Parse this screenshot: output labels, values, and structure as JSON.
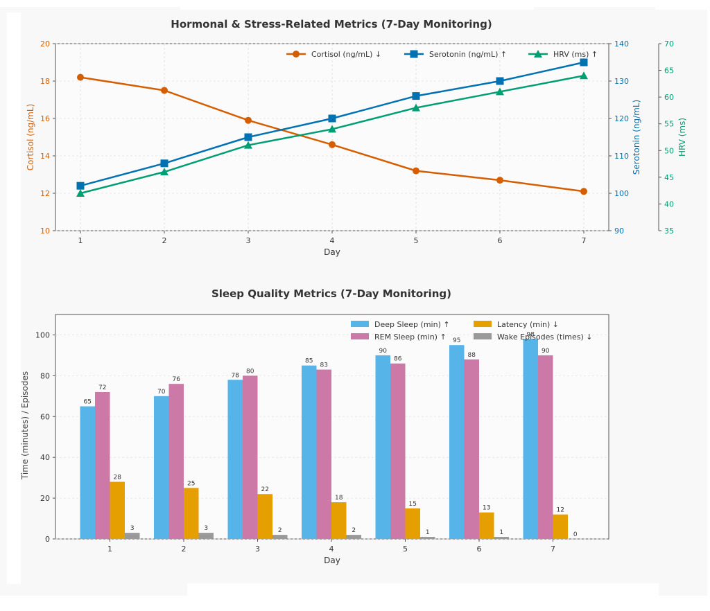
{
  "chart_data": [
    {
      "type": "line",
      "title": "Hormonal & Stress-Related Metrics (7-Day Monitoring)",
      "xlabel": "Day",
      "x": [
        1,
        2,
        3,
        4,
        5,
        6,
        7
      ],
      "xticks": [
        "1",
        "2",
        "3",
        "4",
        "5",
        "6",
        "7"
      ],
      "grid": true,
      "legend_position": "top-right",
      "axes": [
        {
          "id": "left",
          "label": "Cortisol (ng/mL)",
          "ylim": [
            10,
            20
          ],
          "ticks": [
            10,
            12,
            14,
            16,
            18,
            20
          ],
          "color": "#d55e00"
        },
        {
          "id": "right1",
          "label": "Serotonin (ng/mL)",
          "ylim": [
            90,
            140
          ],
          "ticks": [
            90,
            100,
            110,
            120,
            130,
            140
          ],
          "color": "#0072b2"
        },
        {
          "id": "right2",
          "label": "HRV (ms)",
          "ylim": [
            35,
            70
          ],
          "ticks": [
            35,
            40,
            45,
            50,
            55,
            60,
            65,
            70
          ],
          "color": "#009e73"
        }
      ],
      "series": [
        {
          "name": "Cortisol (ng/mL) ↓",
          "axis": "left",
          "marker": "circle",
          "color": "#d55e00",
          "values": [
            18.2,
            17.5,
            15.9,
            14.6,
            13.2,
            12.7,
            12.1
          ]
        },
        {
          "name": "Serotonin (ng/mL) ↑",
          "axis": "right1",
          "marker": "square",
          "color": "#0072b2",
          "values": [
            102,
            108,
            115,
            120,
            126,
            130,
            135
          ]
        },
        {
          "name": "HRV (ms) ↑",
          "axis": "right2",
          "marker": "triangle",
          "color": "#009e73",
          "values": [
            42,
            46,
            51,
            54,
            58,
            61,
            64
          ]
        }
      ]
    },
    {
      "type": "bar",
      "title": "Sleep Quality Metrics (7-Day Monitoring)",
      "xlabel": "Day",
      "ylabel": "Time (minutes) / Episodes",
      "categories": [
        "1",
        "2",
        "3",
        "4",
        "5",
        "6",
        "7"
      ],
      "ylim": [
        0,
        110
      ],
      "yticks": [
        0,
        20,
        40,
        60,
        80,
        100
      ],
      "grid": true,
      "legend_position": "top-right",
      "series": [
        {
          "name": "Deep Sleep (min) ↑",
          "color": "#56b4e9",
          "values": [
            65,
            70,
            78,
            85,
            90,
            95,
            98
          ]
        },
        {
          "name": "REM Sleep (min) ↑",
          "color": "#cc79a7",
          "values": [
            72,
            76,
            80,
            83,
            86,
            88,
            90
          ]
        },
        {
          "name": "Latency (min) ↓",
          "color": "#e69f00",
          "values": [
            28,
            25,
            22,
            18,
            15,
            13,
            12
          ]
        },
        {
          "name": "Wake Episodes (times) ↓",
          "color": "#999999",
          "values": [
            3,
            3,
            2,
            2,
            1,
            1,
            0
          ]
        }
      ]
    }
  ]
}
